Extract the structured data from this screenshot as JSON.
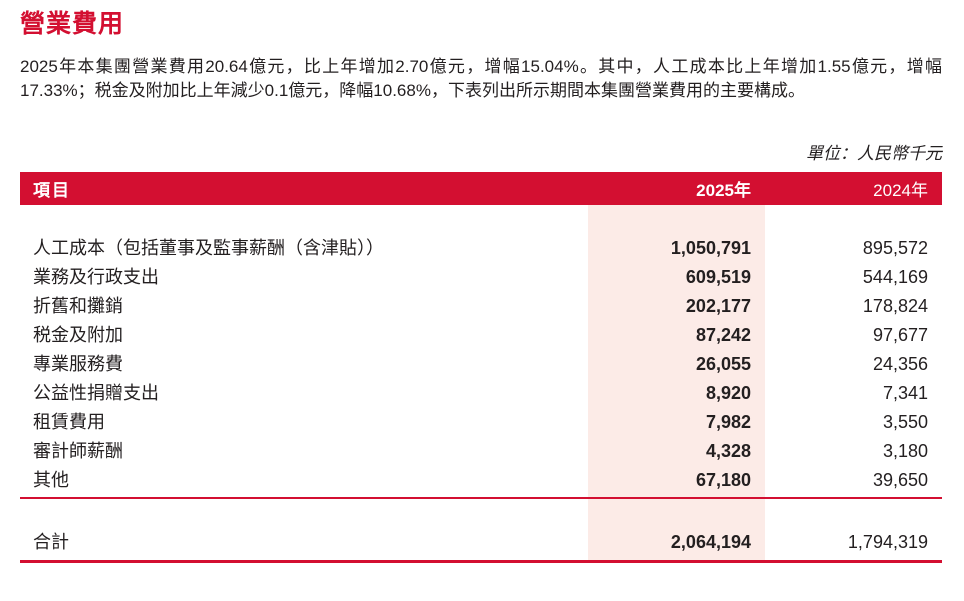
{
  "page": {
    "title": "營業費用",
    "paragraph": "2025年本集團營業費用20.64億元，比上年增加2.70億元，增幅15.04%。其中，人工成本比上年增加1.55億元，增幅17.33%；税金及附加比上年減少0.1億元，降幅10.68%，下表列出所示期間本集團營業費用的主要構成。"
  },
  "table": {
    "unit_note": "單位：人民幣千元",
    "columns": {
      "item": "項目",
      "y2025": "2025年",
      "y2024": "2024年"
    },
    "rows": [
      {
        "item": "人工成本（包括董事及監事薪酬（含津貼））",
        "y2025": "1,050,791",
        "y2024": "895,572"
      },
      {
        "item": "業務及行政支出",
        "y2025": "609,519",
        "y2024": "544,169"
      },
      {
        "item": "折舊和攤銷",
        "y2025": "202,177",
        "y2024": "178,824"
      },
      {
        "item": "税金及附加",
        "y2025": "87,242",
        "y2024": "97,677"
      },
      {
        "item": "專業服務費",
        "y2025": "26,055",
        "y2024": "24,356"
      },
      {
        "item": "公益性捐贈支出",
        "y2025": "8,920",
        "y2024": "7,341"
      },
      {
        "item": "租賃費用",
        "y2025": "7,982",
        "y2024": "3,550"
      },
      {
        "item": "審計師薪酬",
        "y2025": "4,328",
        "y2024": "3,180"
      },
      {
        "item": "其他",
        "y2025": "67,180",
        "y2024": "39,650"
      }
    ],
    "total": {
      "item": "合計",
      "y2025": "2,064,194",
      "y2024": "1,794,319"
    }
  },
  "colors": {
    "accent_red": "#d30f31",
    "highlight_pink": "#fcebe7",
    "text_color": "#231f20"
  }
}
